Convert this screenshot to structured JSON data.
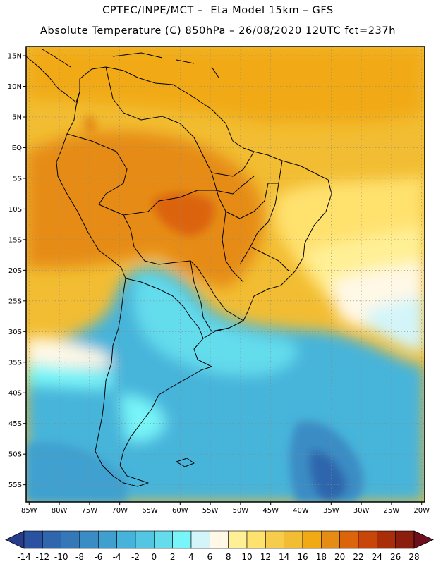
{
  "header": {
    "line1": "CPTEC/INPE/MCT –  Eta Model 15km – GFS",
    "line2": "Absolute Temperature (C) 850hPa – 26/08/2020 12UTC fct=237h"
  },
  "map": {
    "lat_labels": [
      "15N",
      "10N",
      "5N",
      "EQ",
      "5S",
      "10S",
      "15S",
      "20S",
      "25S",
      "30S",
      "35S",
      "40S",
      "45S",
      "50S",
      "55S"
    ],
    "lon_labels": [
      "85W",
      "80W",
      "75W",
      "70W",
      "65W",
      "60W",
      "55W",
      "50W",
      "45W",
      "40W",
      "35W",
      "30W",
      "25W",
      "20W"
    ],
    "lat_values": [
      15,
      10,
      5,
      0,
      -5,
      -10,
      -15,
      -20,
      -25,
      -30,
      -35,
      -40,
      -45,
      -50,
      -55
    ],
    "lon_values": [
      -85,
      -80,
      -75,
      -70,
      -65,
      -60,
      -55,
      -50,
      -45,
      -40,
      -35,
      -30,
      -25,
      -20
    ],
    "extent": {
      "lon_min": -85.5,
      "lon_max": -19.5,
      "lat_min": -57.8,
      "lat_max": 16.5
    },
    "gridlines": true
  },
  "colorbar": {
    "labels": [
      "-14",
      "-12",
      "-10",
      "-8",
      "-6",
      "-4",
      "-2",
      "0",
      "2",
      "4",
      "6",
      "8",
      "10",
      "12",
      "14",
      "16",
      "18",
      "20",
      "22",
      "24",
      "26",
      "28"
    ],
    "under_color": "#283c8c",
    "over_color": "#6e0f1e",
    "colors": [
      "#2a52a0",
      "#2f66ad",
      "#3478b8",
      "#3a8cc4",
      "#3fa0cf",
      "#46b4da",
      "#52c6e3",
      "#64dcec",
      "#78f5f8",
      "#d3f5fa",
      "#fff8e6",
      "#fff096",
      "#ffe16e",
      "#f6cc4b",
      "#f2bd32",
      "#f1aa14",
      "#e68c14",
      "#dc640a",
      "#c8460a",
      "#aa2d0a",
      "#8c1e0e"
    ]
  }
}
